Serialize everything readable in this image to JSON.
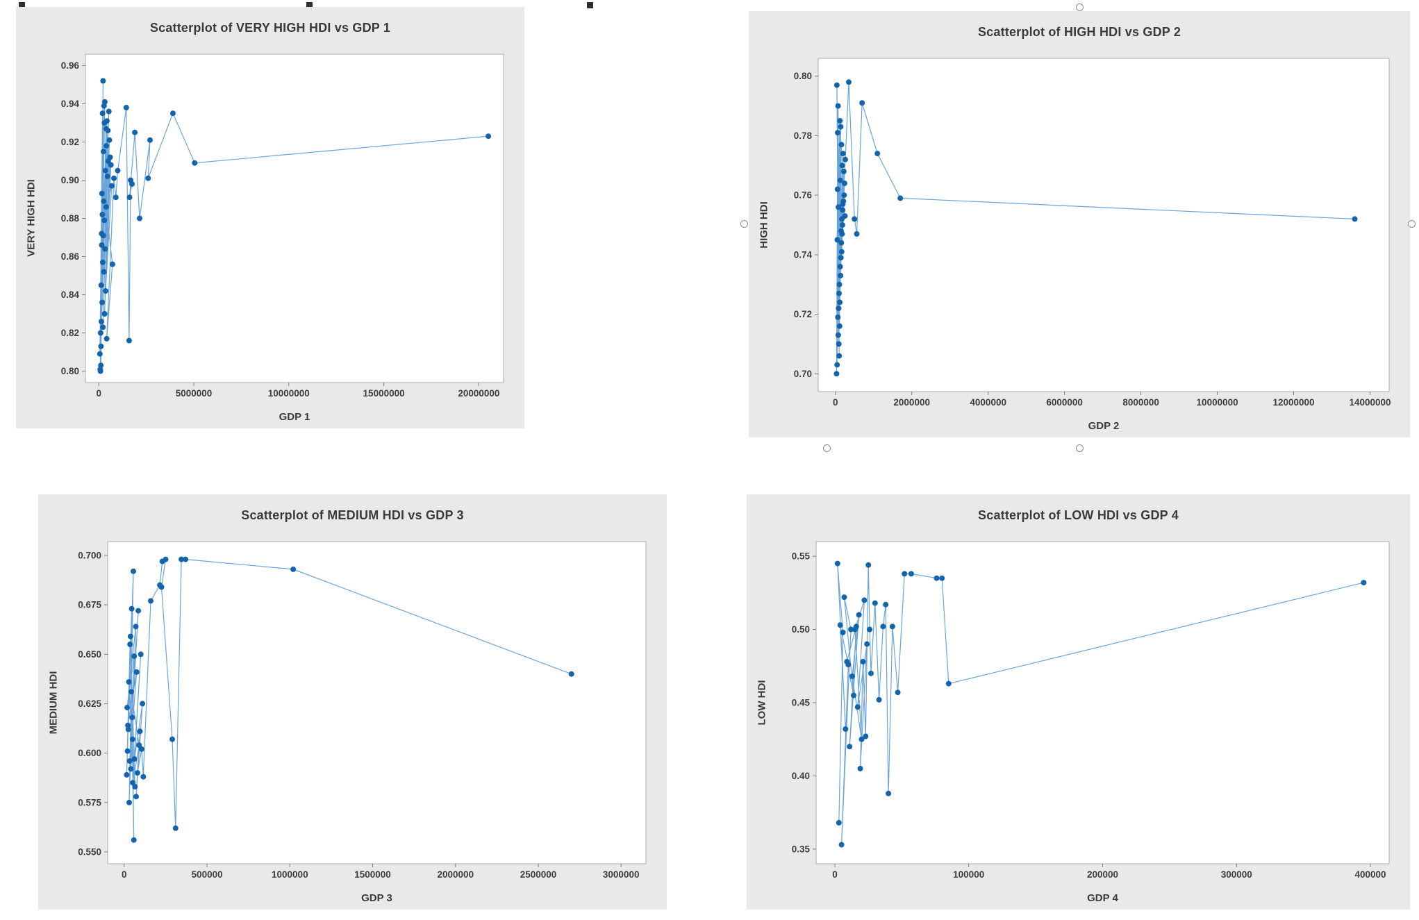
{
  "canvas": {
    "background": "#ffffff"
  },
  "style": {
    "panel_bg": "#e9e9e9",
    "plot_bg": "#ffffff",
    "plot_border": "#ababab",
    "point_color": "#1464ab",
    "line_color": "#6aa4d8",
    "tick_color": "#7a7a7a",
    "text_color": "#3a3a3a"
  },
  "chart_data": [
    {
      "type": "scatter",
      "title": "Scatterplot of VERY HIGH HDI vs GDP 1",
      "xlabel": "GDP 1",
      "ylabel": "VERY HIGH HDI",
      "xlim": [
        -700000,
        21300000
      ],
      "ylim": [
        0.794,
        0.966
      ],
      "legend": "none",
      "grid": false,
      "connect_line": true,
      "xticks": [
        {
          "v": 0,
          "label": "0"
        },
        {
          "v": 5000000,
          "label": "5000000"
        },
        {
          "v": 10000000,
          "label": "10000000"
        },
        {
          "v": 15000000,
          "label": "15000000"
        },
        {
          "v": 20000000,
          "label": "20000000"
        }
      ],
      "yticks": [
        {
          "v": 0.8,
          "label": "0.80"
        },
        {
          "v": 0.82,
          "label": "0.82"
        },
        {
          "v": 0.84,
          "label": "0.84"
        },
        {
          "v": 0.86,
          "label": "0.86"
        },
        {
          "v": 0.88,
          "label": "0.88"
        },
        {
          "v": 0.9,
          "label": "0.90"
        },
        {
          "v": 0.92,
          "label": "0.92"
        },
        {
          "v": 0.94,
          "label": "0.94"
        },
        {
          "v": 0.96,
          "label": "0.96"
        }
      ],
      "points": [
        [
          80000,
          0.801
        ],
        [
          150000,
          0.872
        ],
        [
          60000,
          0.809
        ],
        [
          200000,
          0.935
        ],
        [
          100000,
          0.82
        ],
        [
          170000,
          0.893
        ],
        [
          90000,
          0.8
        ],
        [
          230000,
          0.952
        ],
        [
          130000,
          0.845
        ],
        [
          250000,
          0.915
        ],
        [
          110000,
          0.803
        ],
        [
          280000,
          0.939
        ],
        [
          160000,
          0.866
        ],
        [
          300000,
          0.93
        ],
        [
          140000,
          0.826
        ],
        [
          320000,
          0.941
        ],
        [
          190000,
          0.882
        ],
        [
          350000,
          0.905
        ],
        [
          120000,
          0.813
        ],
        [
          380000,
          0.927
        ],
        [
          210000,
          0.857
        ],
        [
          400000,
          0.918
        ],
        [
          180000,
          0.836
        ],
        [
          430000,
          0.931
        ],
        [
          240000,
          0.871
        ],
        [
          460000,
          0.902
        ],
        [
          220000,
          0.823
        ],
        [
          480000,
          0.926
        ],
        [
          260000,
          0.889
        ],
        [
          500000,
          0.91
        ],
        [
          270000,
          0.852
        ],
        [
          530000,
          0.936
        ],
        [
          290000,
          0.879
        ],
        [
          560000,
          0.921
        ],
        [
          310000,
          0.83
        ],
        [
          600000,
          0.912
        ],
        [
          330000,
          0.864
        ],
        [
          640000,
          0.908
        ],
        [
          360000,
          0.842
        ],
        [
          680000,
          0.897
        ],
        [
          390000,
          0.886
        ],
        [
          720000,
          0.856
        ],
        [
          420000,
          0.817
        ],
        [
          800000,
          0.901
        ],
        [
          900000,
          0.891
        ],
        [
          1000000,
          0.905
        ],
        [
          1450000,
          0.938
        ],
        [
          1600000,
          0.816
        ],
        [
          1680000,
          0.9
        ],
        [
          1750000,
          0.898
        ],
        [
          1620000,
          0.891
        ],
        [
          1900000,
          0.925
        ],
        [
          2150000,
          0.88
        ],
        [
          2700000,
          0.921
        ],
        [
          2600000,
          0.901
        ],
        [
          3900000,
          0.935
        ],
        [
          5050000,
          0.909
        ],
        [
          20500000,
          0.923
        ]
      ]
    },
    {
      "type": "scatter",
      "title": "Scatterplot of HIGH HDI vs GDP 2",
      "xlabel": "GDP 2",
      "ylabel": "HIGH HDI",
      "xlim": [
        -450000,
        14500000
      ],
      "ylim": [
        0.694,
        0.806
      ],
      "legend": "none",
      "grid": false,
      "connect_line": true,
      "xticks": [
        {
          "v": 0,
          "label": "0"
        },
        {
          "v": 2000000,
          "label": "2000000"
        },
        {
          "v": 4000000,
          "label": "4000000"
        },
        {
          "v": 6000000,
          "label": "6000000"
        },
        {
          "v": 8000000,
          "label": "8000000"
        },
        {
          "v": 10000000,
          "label": "10000000"
        },
        {
          "v": 12000000,
          "label": "12000000"
        },
        {
          "v": 14000000,
          "label": "14000000"
        }
      ],
      "yticks": [
        {
          "v": 0.7,
          "label": "0.70"
        },
        {
          "v": 0.72,
          "label": "0.72"
        },
        {
          "v": 0.74,
          "label": "0.74"
        },
        {
          "v": 0.76,
          "label": "0.76"
        },
        {
          "v": 0.78,
          "label": "0.78"
        },
        {
          "v": 0.8,
          "label": "0.80"
        }
      ],
      "points": [
        [
          30000,
          0.7
        ],
        [
          60000,
          0.781
        ],
        [
          45000,
          0.703
        ],
        [
          80000,
          0.756
        ],
        [
          40000,
          0.797
        ],
        [
          90000,
          0.71
        ],
        [
          55000,
          0.762
        ],
        [
          100000,
          0.706
        ],
        [
          70000,
          0.79
        ],
        [
          110000,
          0.716
        ],
        [
          50000,
          0.745
        ],
        [
          120000,
          0.785
        ],
        [
          85000,
          0.722
        ],
        [
          130000,
          0.765
        ],
        [
          65000,
          0.719
        ],
        [
          140000,
          0.783
        ],
        [
          95000,
          0.727
        ],
        [
          150000,
          0.748
        ],
        [
          75000,
          0.713
        ],
        [
          160000,
          0.777
        ],
        [
          105000,
          0.73
        ],
        [
          170000,
          0.752
        ],
        [
          115000,
          0.724
        ],
        [
          180000,
          0.77
        ],
        [
          125000,
          0.736
        ],
        [
          190000,
          0.755
        ],
        [
          135000,
          0.733
        ],
        [
          200000,
          0.774
        ],
        [
          145000,
          0.739
        ],
        [
          210000,
          0.758
        ],
        [
          155000,
          0.744
        ],
        [
          220000,
          0.768
        ],
        [
          165000,
          0.741
        ],
        [
          230000,
          0.76
        ],
        [
          175000,
          0.747
        ],
        [
          240000,
          0.764
        ],
        [
          185000,
          0.75
        ],
        [
          250000,
          0.753
        ],
        [
          195000,
          0.757
        ],
        [
          260000,
          0.772
        ],
        [
          350000,
          0.798
        ],
        [
          500000,
          0.752
        ],
        [
          560000,
          0.747
        ],
        [
          700000,
          0.791
        ],
        [
          1100000,
          0.774
        ],
        [
          1700000,
          0.759
        ],
        [
          13600000,
          0.752
        ]
      ]
    },
    {
      "type": "scatter",
      "title": "Scatterplot of MEDIUM HDI vs GDP 3",
      "xlabel": "GDP 3",
      "ylabel": "MEDIUM HDI",
      "xlim": [
        -100000,
        3150000
      ],
      "ylim": [
        0.544,
        0.707
      ],
      "legend": "none",
      "grid": false,
      "connect_line": true,
      "xticks": [
        {
          "v": 0,
          "label": "0"
        },
        {
          "v": 500000,
          "label": "500000"
        },
        {
          "v": 1000000,
          "label": "1000000"
        },
        {
          "v": 1500000,
          "label": "1500000"
        },
        {
          "v": 2000000,
          "label": "2000000"
        },
        {
          "v": 2500000,
          "label": "2500000"
        },
        {
          "v": 3000000,
          "label": "3000000"
        }
      ],
      "yticks": [
        {
          "v": 0.55,
          "label": "0.550"
        },
        {
          "v": 0.575,
          "label": "0.575"
        },
        {
          "v": 0.6,
          "label": "0.600"
        },
        {
          "v": 0.625,
          "label": "0.625"
        },
        {
          "v": 0.65,
          "label": "0.650"
        },
        {
          "v": 0.675,
          "label": "0.675"
        },
        {
          "v": 0.7,
          "label": "0.700"
        }
      ],
      "points": [
        [
          20000,
          0.601
        ],
        [
          35000,
          0.655
        ],
        [
          15000,
          0.589
        ],
        [
          45000,
          0.673
        ],
        [
          25000,
          0.612
        ],
        [
          55000,
          0.692
        ],
        [
          30000,
          0.575
        ],
        [
          60000,
          0.649
        ],
        [
          18000,
          0.623
        ],
        [
          70000,
          0.664
        ],
        [
          40000,
          0.592
        ],
        [
          50000,
          0.607
        ],
        [
          28000,
          0.636
        ],
        [
          65000,
          0.583
        ],
        [
          38000,
          0.659
        ],
        [
          22000,
          0.614
        ],
        [
          75000,
          0.641
        ],
        [
          33000,
          0.596
        ],
        [
          85000,
          0.672
        ],
        [
          48000,
          0.618
        ],
        [
          58000,
          0.556
        ],
        [
          42000,
          0.631
        ],
        [
          90000,
          0.604
        ],
        [
          52000,
          0.585
        ],
        [
          100000,
          0.65
        ],
        [
          62000,
          0.597
        ],
        [
          110000,
          0.625
        ],
        [
          72000,
          0.578
        ],
        [
          95000,
          0.611
        ],
        [
          80000,
          0.59
        ],
        [
          105000,
          0.602
        ],
        [
          115000,
          0.588
        ],
        [
          160000,
          0.677
        ],
        [
          215000,
          0.685
        ],
        [
          230000,
          0.697
        ],
        [
          250000,
          0.698
        ],
        [
          225000,
          0.684
        ],
        [
          290000,
          0.607
        ],
        [
          310000,
          0.562
        ],
        [
          345000,
          0.698
        ],
        [
          370000,
          0.698
        ],
        [
          1020000,
          0.693
        ],
        [
          2700000,
          0.64
        ]
      ]
    },
    {
      "type": "scatter",
      "title": "Scatterplot of LOW HDI vs GDP 4",
      "xlabel": "GDP 4",
      "ylabel": "LOW HDI",
      "xlim": [
        -14000,
        414000
      ],
      "ylim": [
        0.34,
        0.56
      ],
      "legend": "none",
      "grid": false,
      "connect_line": true,
      "xticks": [
        {
          "v": 0,
          "label": "0"
        },
        {
          "v": 100000,
          "label": "100000"
        },
        {
          "v": 200000,
          "label": "200000"
        },
        {
          "v": 300000,
          "label": "300000"
        },
        {
          "v": 400000,
          "label": "400000"
        }
      ],
      "yticks": [
        {
          "v": 0.35,
          "label": "0.35"
        },
        {
          "v": 0.4,
          "label": "0.40"
        },
        {
          "v": 0.45,
          "label": "0.45"
        },
        {
          "v": 0.5,
          "label": "0.50"
        },
        {
          "v": 0.55,
          "label": "0.55"
        }
      ],
      "points": [
        [
          3000,
          0.368
        ],
        [
          6000,
          0.498
        ],
        [
          2000,
          0.545
        ],
        [
          8000,
          0.432
        ],
        [
          4000,
          0.503
        ],
        [
          10000,
          0.476
        ],
        [
          5000,
          0.353
        ],
        [
          12000,
          0.5
        ],
        [
          7000,
          0.522
        ],
        [
          14000,
          0.455
        ],
        [
          9000,
          0.478
        ],
        [
          16000,
          0.502
        ],
        [
          11000,
          0.42
        ],
        [
          18000,
          0.51
        ],
        [
          13000,
          0.468
        ],
        [
          20000,
          0.425
        ],
        [
          15000,
          0.5
        ],
        [
          22000,
          0.52
        ],
        [
          17000,
          0.447
        ],
        [
          24000,
          0.49
        ],
        [
          19000,
          0.405
        ],
        [
          21000,
          0.478
        ],
        [
          23000,
          0.427
        ],
        [
          25000,
          0.544
        ],
        [
          26000,
          0.5
        ],
        [
          27000,
          0.47
        ],
        [
          30000,
          0.518
        ],
        [
          33000,
          0.452
        ],
        [
          36000,
          0.502
        ],
        [
          38000,
          0.517
        ],
        [
          40000,
          0.388
        ],
        [
          43000,
          0.502
        ],
        [
          47000,
          0.457
        ],
        [
          52000,
          0.538
        ],
        [
          57000,
          0.538
        ],
        [
          76000,
          0.535
        ],
        [
          80000,
          0.535
        ],
        [
          85000,
          0.463
        ],
        [
          395000,
          0.532
        ]
      ]
    }
  ]
}
